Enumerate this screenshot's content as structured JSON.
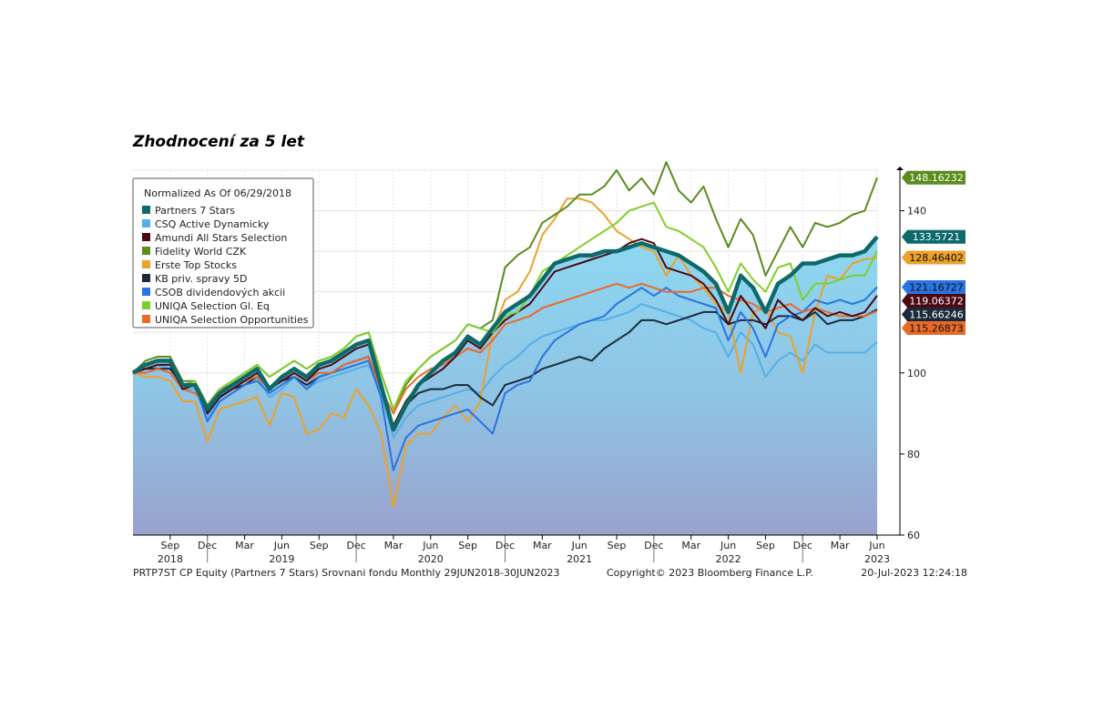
{
  "title": "Zhodnocení za 5 let",
  "footer": {
    "left": "PRTP7ST CP Equity (Partners 7 Stars) Srovnani fondu  Monthly 29JUN2018-30JUN2023",
    "center": "Copyright© 2023 Bloomberg Finance L.P.",
    "right": "20-Jul-2023 12:24:18"
  },
  "chart_data": {
    "type": "line",
    "legend_title": "Normalized As Of 06/29/2018",
    "legend_position": "top-left",
    "ylim": [
      60,
      150
    ],
    "yticks": [
      60,
      80,
      100,
      140
    ],
    "grid": true,
    "x_start": "2018-06",
    "x_end": "2023-06",
    "month_ticks": [
      {
        "month": "Sep",
        "year": "2018"
      },
      {
        "month": "Dec",
        "year": ""
      },
      {
        "month": "Mar",
        "year": ""
      },
      {
        "month": "Jun",
        "year": "2019"
      },
      {
        "month": "Sep",
        "year": ""
      },
      {
        "month": "Dec",
        "year": ""
      },
      {
        "month": "Mar",
        "year": ""
      },
      {
        "month": "Jun",
        "year": "2020"
      },
      {
        "month": "Sep",
        "year": ""
      },
      {
        "month": "Dec",
        "year": ""
      },
      {
        "month": "Mar",
        "year": ""
      },
      {
        "month": "Jun",
        "year": "2021"
      },
      {
        "month": "Sep",
        "year": ""
      },
      {
        "month": "Dec",
        "year": ""
      },
      {
        "month": "Mar",
        "year": ""
      },
      {
        "month": "Jun",
        "year": "2022"
      },
      {
        "month": "Sep",
        "year": ""
      },
      {
        "month": "Dec",
        "year": ""
      },
      {
        "month": "Mar",
        "year": ""
      },
      {
        "month": "Jun",
        "year": "2023"
      }
    ],
    "series": [
      {
        "name": "Partners 7 Stars",
        "color": "#0e6a6a",
        "end_label": "133.5721",
        "values": [
          100,
          102,
          103,
          103,
          97,
          97,
          91,
          95,
          97,
          99,
          101,
          96,
          99,
          101,
          99,
          102,
          103,
          105,
          107,
          108,
          97,
          86,
          92,
          97,
          100,
          103,
          105,
          109,
          107,
          111,
          115,
          117,
          119,
          123,
          127,
          128,
          129,
          129,
          130,
          130,
          131,
          132,
          131,
          130,
          129,
          127,
          125,
          122,
          115,
          124,
          121,
          115,
          122,
          124,
          127,
          127,
          128,
          129,
          129,
          130,
          133.57
        ]
      },
      {
        "name": "CSQ Active Dynamicky",
        "color": "#56aee8",
        "end_label": "",
        "values": [
          100,
          101,
          102,
          101,
          96,
          96,
          89,
          94,
          96,
          98,
          99,
          94,
          96,
          99,
          96,
          98,
          99,
          100,
          101,
          102,
          95,
          84,
          89,
          92,
          93,
          94,
          95,
          96,
          95,
          99,
          102,
          104,
          107,
          109,
          110,
          111,
          112,
          113,
          113,
          114,
          115,
          117,
          116,
          115,
          114,
          113,
          111,
          110,
          104,
          110,
          107,
          99,
          103,
          105,
          103,
          107,
          105,
          105,
          105,
          105,
          107.63
        ]
      },
      {
        "name": "Amundi All Stars Selection",
        "color": "#4a0a14",
        "end_label": "119.06372",
        "values": [
          100,
          101,
          102,
          102,
          96,
          97,
          90,
          94,
          96,
          98,
          100,
          96,
          98,
          100,
          98,
          101,
          102,
          104,
          106,
          107,
          96,
          87,
          93,
          97,
          99,
          101,
          104,
          108,
          106,
          110,
          113,
          115,
          117,
          121,
          125,
          126,
          127,
          128,
          129,
          130,
          132,
          133,
          132,
          126,
          125,
          124,
          122,
          118,
          112,
          119,
          115,
          111,
          118,
          115,
          113,
          116,
          114,
          115,
          114,
          115,
          119.06
        ]
      },
      {
        "name": "Fidelity World CZK",
        "color": "#5a8c1e",
        "end_label": "148.16232",
        "values": [
          100,
          103,
          104,
          104,
          98,
          98,
          92,
          96,
          98,
          100,
          102,
          99,
          101,
          103,
          101,
          103,
          104,
          106,
          109,
          110,
          100,
          91,
          97,
          101,
          104,
          106,
          108,
          112,
          111,
          113,
          126,
          129,
          131,
          137,
          139,
          141,
          144,
          144,
          146,
          150,
          145,
          148,
          144,
          152,
          145,
          142,
          146,
          138,
          131,
          138,
          134,
          124,
          130,
          136,
          131,
          137,
          136,
          137,
          139,
          140,
          148.16
        ]
      },
      {
        "name": "Erste Top Stocks",
        "color": "#eba12b",
        "end_label": "128.46402",
        "values": [
          100,
          99,
          99,
          98,
          93,
          93,
          83,
          91,
          92,
          93,
          94,
          87,
          95,
          94,
          85,
          86,
          90,
          89,
          96,
          92,
          85,
          67,
          82,
          85,
          85,
          89,
          92,
          88,
          93,
          110,
          118,
          120,
          125,
          134,
          138,
          143,
          143,
          142,
          139,
          135,
          133,
          131,
          130,
          124,
          129,
          124,
          121,
          117,
          115,
          100,
          115,
          116,
          110,
          109,
          100,
          115,
          124,
          123,
          127,
          128,
          128.46
        ]
      },
      {
        "name": "KB priv. spravy 5D",
        "color": "#1b2a3a",
        "end_label": "115.66246",
        "values": [
          100,
          101,
          101,
          101,
          97,
          97,
          90,
          94,
          96,
          97,
          99,
          96,
          98,
          99,
          97,
          99,
          100,
          102,
          103,
          104,
          96,
          87,
          92,
          95,
          96,
          96,
          97,
          97,
          94,
          92,
          97,
          98,
          99,
          101,
          102,
          103,
          104,
          103,
          106,
          108,
          110,
          113,
          113,
          112,
          113,
          114,
          115,
          115,
          112,
          113,
          113,
          112,
          114,
          114,
          113,
          115,
          112,
          113,
          113,
          114,
          115.66
        ]
      },
      {
        "name": "CSOB dividendových akcii",
        "color": "#2a73e0",
        "end_label": "121.16727",
        "values": [
          100,
          101,
          102,
          102,
          97,
          97,
          88,
          93,
          95,
          97,
          98,
          95,
          97,
          99,
          96,
          99,
          100,
          101,
          102,
          103,
          94,
          76,
          84,
          87,
          88,
          89,
          90,
          91,
          88,
          85,
          95,
          97,
          98,
          104,
          108,
          110,
          112,
          113,
          114,
          117,
          119,
          121,
          119,
          121,
          119,
          118,
          117,
          116,
          108,
          115,
          111,
          104,
          112,
          114,
          115,
          118,
          117,
          118,
          117,
          118,
          121.17
        ]
      },
      {
        "name": "UNIQA Selection Gl. Eq",
        "color": "#7fcf2a",
        "end_label": "",
        "values": [
          100,
          102,
          103,
          103,
          97,
          98,
          91,
          96,
          98,
          100,
          102,
          99,
          101,
          103,
          101,
          103,
          104,
          106,
          109,
          110,
          100,
          91,
          98,
          101,
          104,
          106,
          108,
          112,
          111,
          110,
          114,
          115,
          119,
          125,
          127,
          129,
          131,
          133,
          135,
          137,
          140,
          141,
          142,
          136,
          135,
          133,
          131,
          126,
          120,
          127,
          123,
          120,
          126,
          127,
          118,
          122,
          122,
          123,
          124,
          124,
          130
        ]
      },
      {
        "name": "UNIQA Selection Opportunities",
        "color": "#ea6a2a",
        "end_label": "115.26873",
        "values": [
          100,
          100,
          101,
          100,
          96,
          95,
          92,
          96,
          97,
          98,
          99,
          96,
          98,
          100,
          98,
          100,
          100,
          102,
          103,
          104,
          96,
          90,
          96,
          99,
          101,
          102,
          104,
          106,
          105,
          108,
          112,
          113,
          114,
          116,
          117,
          118,
          119,
          120,
          121,
          122,
          121,
          122,
          121,
          120,
          120,
          120,
          121,
          121,
          119,
          118,
          117,
          115,
          116,
          117,
          115,
          116,
          115,
          114,
          114,
          114,
          115.27
        ]
      }
    ]
  }
}
